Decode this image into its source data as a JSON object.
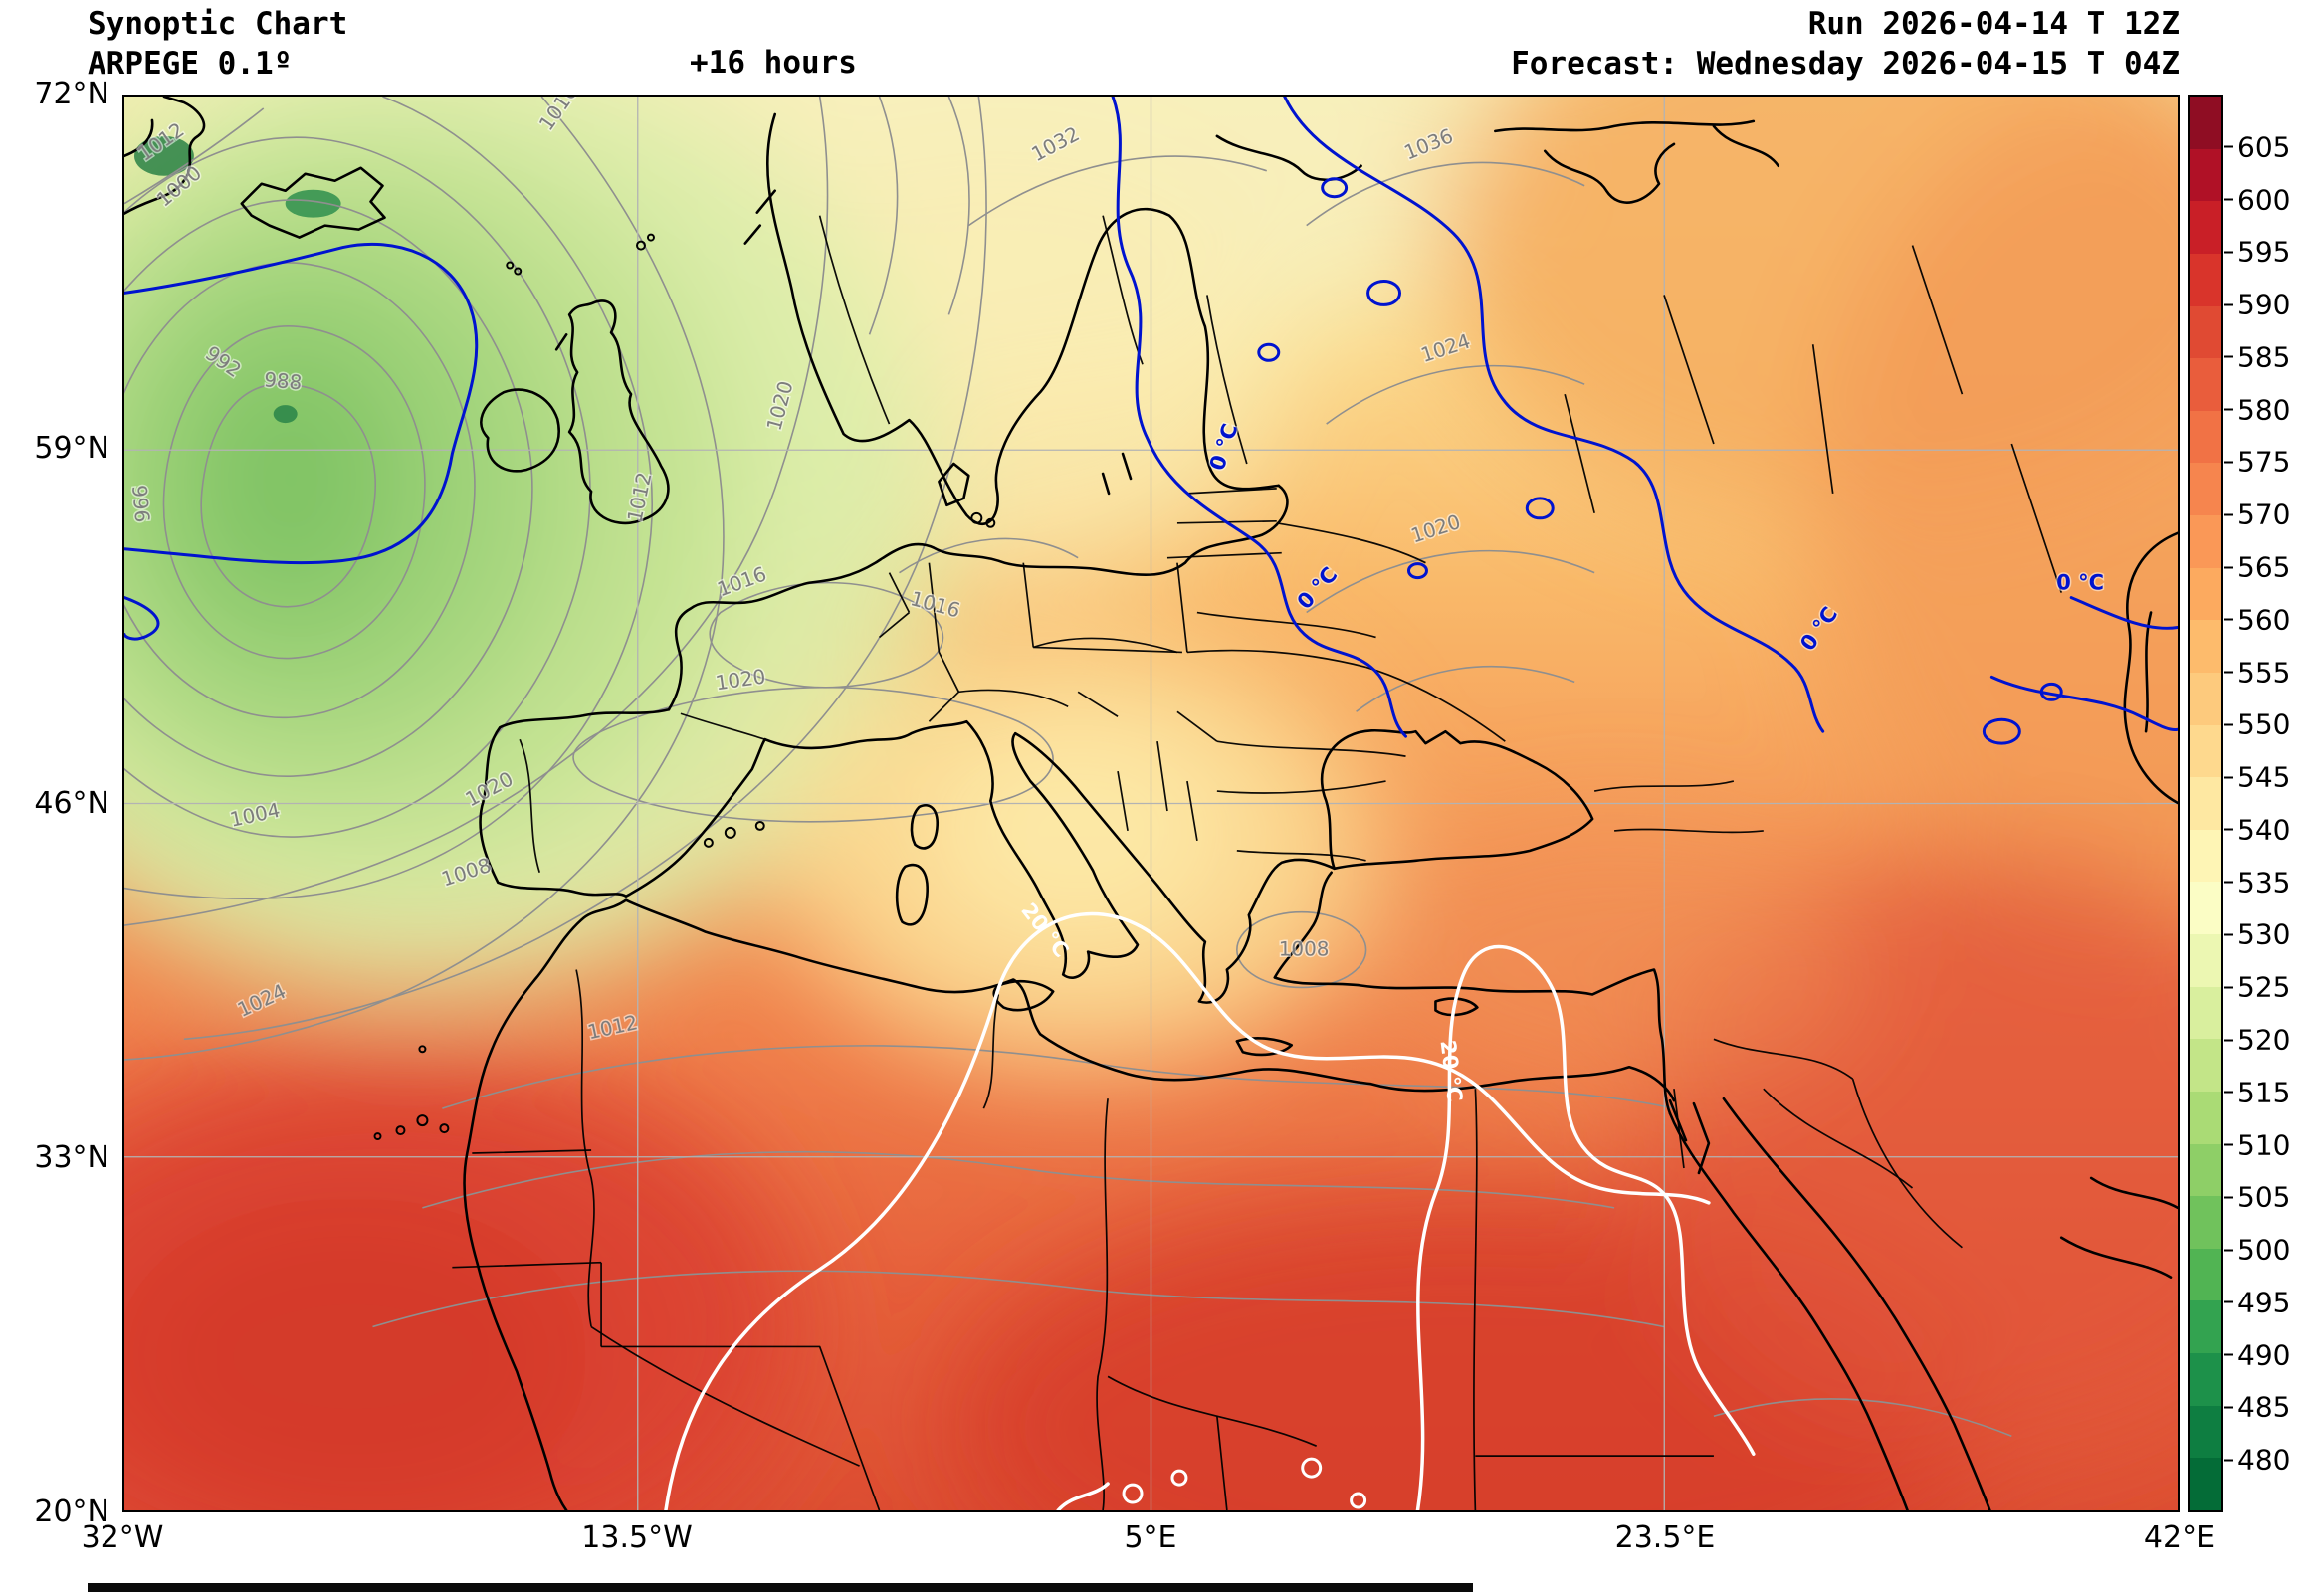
{
  "header": {
    "title": "Synoptic Chart",
    "model": "ARPEGE 0.1º",
    "lead_time": "+16 hours",
    "run": "Run 2026-04-14 T 12Z",
    "forecast": "Forecast: Wednesday 2026-04-15 T 04Z"
  },
  "axes": {
    "lat_ticks": [
      "72°N",
      "59°N",
      "46°N",
      "33°N",
      "20°N"
    ],
    "lon_ticks": [
      "32°W",
      "13.5°W",
      "5°E",
      "23.5°E",
      "42°E"
    ]
  },
  "colorbar": {
    "tick_labels": [
      "605",
      "600",
      "595",
      "590",
      "585",
      "580",
      "575",
      "570",
      "565",
      "560",
      "555",
      "550",
      "545",
      "540",
      "535",
      "530",
      "525",
      "520",
      "515",
      "510",
      "505",
      "500",
      "495",
      "490",
      "485",
      "480"
    ],
    "cell_colors_top_to_bottom": [
      "#8f0d23",
      "#b01126",
      "#c91f27",
      "#d9342b",
      "#e04a33",
      "#e95d3c",
      "#f17245",
      "#f6854e",
      "#fa9857",
      "#fcaa5f",
      "#fdbb6c",
      "#fdca7d",
      "#fed98e",
      "#fee8a2",
      "#fef5b5",
      "#fbfdc5",
      "#ecf7b2",
      "#d9ef9e",
      "#c3e588",
      "#aadb75",
      "#8ecf67",
      "#70c25c",
      "#51b453",
      "#33a350",
      "#1d914a",
      "#0e7e41",
      "#046c37"
    ]
  },
  "contours": {
    "isobar_labels": [
      "988",
      "992",
      "996",
      "1000",
      "1004",
      "1008",
      "1012",
      "1012",
      "1016",
      "1016",
      "1016",
      "1020",
      "1020",
      "1020",
      "1020",
      "1024",
      "1024",
      "1032",
      "1036",
      "1012",
      "1008"
    ],
    "zero_isotherm_label": "0 °C",
    "twenty_isotherm_label": "20 °C"
  },
  "colors": {
    "zero_isotherm": "#0013cf",
    "twenty_isotherm": "#ffffff",
    "isobar": "#8f8f8f",
    "low_center_fill": "#7fc364",
    "warm_fill": "#dd4f33"
  }
}
